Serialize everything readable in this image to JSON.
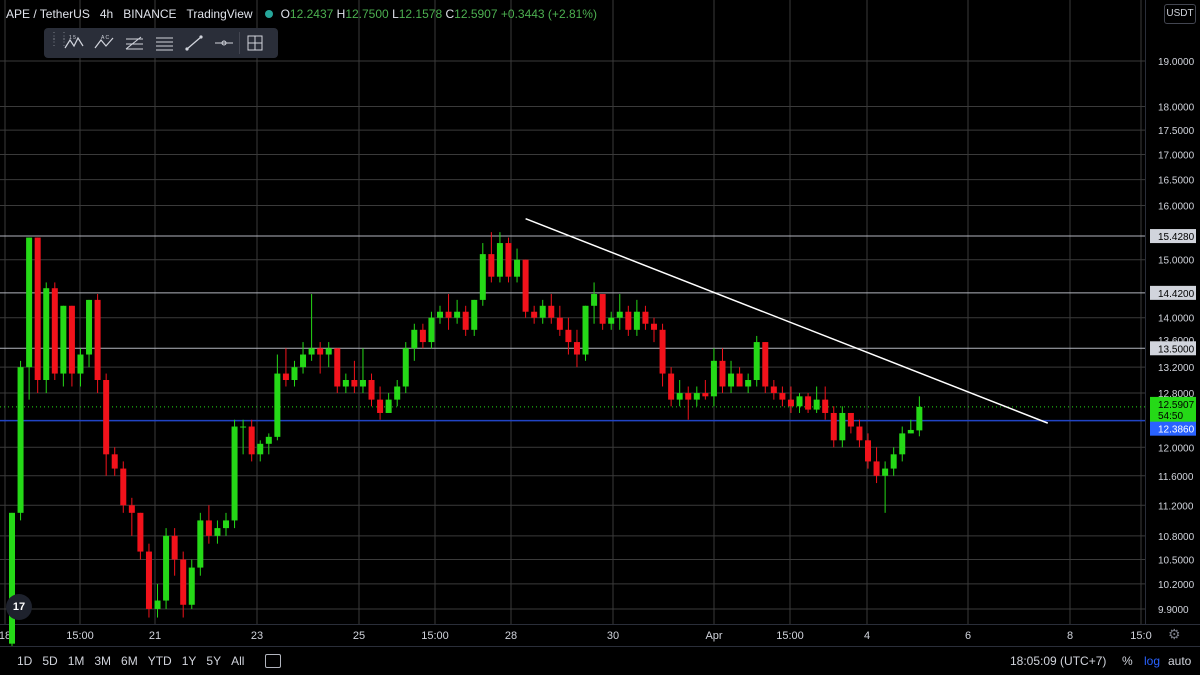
{
  "legend": {
    "symbol": "APE / TetherUS",
    "interval": "4h",
    "exchange": "BINANCE",
    "source": "TradingView",
    "o_label": "O",
    "o": "12.2437",
    "h_label": "H",
    "h": "12.7500",
    "l_label": "L",
    "l": "12.1578",
    "c_label": "C",
    "c": "12.5907",
    "change": "+0.3443 (+2.81%)"
  },
  "currency": "USDT",
  "toolbar": {
    "icons": [
      "grip-icon",
      "xabcd-pattern-icon",
      "abc-pattern-icon",
      "fib-retracement-icon",
      "fib-channel-icon",
      "trend-line-icon",
      "horizontal-ray-icon",
      "cross-frame-icon"
    ]
  },
  "colors": {
    "up": "#25d917",
    "down": "#f2121b",
    "grid": "#3a3a3a",
    "level": "#b2b5be",
    "trendline": "#ffffff",
    "blue_line": "#2144c4",
    "price_tag": "#25d917",
    "blue_tag": "#2962ff"
  },
  "chart_data": {
    "type": "candlestick",
    "y_ticks": [
      "19.0000",
      "18.0000",
      "17.5000",
      "17.0000",
      "16.5000",
      "16.0000",
      "15.0000",
      "14.0000",
      "13.2000",
      "12.8000",
      "12.0000",
      "11.6000",
      "11.2000",
      "10.8000",
      "10.5000",
      "10.2000",
      "9.9000"
    ],
    "x_ticks": [
      "18",
      "15:00",
      "21",
      "23",
      "25",
      "15:00",
      "28",
      "30",
      "Apr",
      "15:00",
      "4",
      "6",
      "8",
      "15:0"
    ],
    "levels": [
      {
        "price": "15.4280",
        "value": 15.428
      },
      {
        "price": "14.4200",
        "value": 14.42
      },
      {
        "price": "13.5000",
        "value": 13.5
      }
    ],
    "blue_line": {
      "price": "12.3860",
      "value": 12.386
    },
    "last_price": {
      "price": "12.5907",
      "countdown": "54:50",
      "value": 12.5907
    },
    "extra_level_label": "13.6000",
    "trendline": {
      "from": {
        "candle": 0,
        "offset": 60,
        "value": 15.75
      },
      "to": {
        "candle": 0,
        "offset": 121,
        "value": 12.35
      }
    },
    "candles": [
      [
        9.5,
        11.1,
        9.4,
        11.1
      ],
      [
        11.1,
        13.3,
        11.0,
        13.2
      ],
      [
        13.2,
        15.4,
        12.7,
        15.4
      ],
      [
        15.4,
        15.4,
        12.8,
        13.0
      ],
      [
        13.0,
        14.6,
        12.8,
        14.5
      ],
      [
        14.5,
        14.6,
        13.0,
        13.1
      ],
      [
        13.1,
        14.2,
        12.9,
        14.2
      ],
      [
        14.2,
        14.2,
        12.9,
        13.1
      ],
      [
        13.1,
        13.5,
        12.9,
        13.4
      ],
      [
        13.4,
        14.3,
        13.2,
        14.3
      ],
      [
        14.3,
        14.4,
        12.8,
        13.0
      ],
      [
        13.0,
        13.1,
        11.6,
        11.9
      ],
      [
        11.9,
        12.0,
        11.6,
        11.7
      ],
      [
        11.7,
        11.8,
        11.1,
        11.2
      ],
      [
        11.2,
        11.3,
        10.8,
        11.1
      ],
      [
        11.1,
        11.1,
        10.5,
        10.6
      ],
      [
        10.6,
        10.7,
        9.8,
        9.9
      ],
      [
        9.9,
        10.2,
        9.8,
        10.0
      ],
      [
        10.0,
        10.9,
        9.9,
        10.8
      ],
      [
        10.8,
        10.9,
        10.3,
        10.5
      ],
      [
        10.5,
        10.6,
        9.8,
        9.95
      ],
      [
        9.95,
        10.5,
        9.9,
        10.4
      ],
      [
        10.4,
        11.1,
        10.3,
        11.0
      ],
      [
        11.0,
        11.2,
        10.7,
        10.8
      ],
      [
        10.8,
        11.0,
        10.7,
        10.9
      ],
      [
        10.9,
        11.1,
        10.8,
        11.0
      ],
      [
        11.0,
        12.4,
        10.9,
        12.3
      ],
      [
        12.3,
        12.4,
        11.9,
        12.3
      ],
      [
        12.3,
        12.4,
        11.8,
        11.9
      ],
      [
        11.9,
        12.1,
        11.8,
        12.05
      ],
      [
        12.05,
        12.2,
        11.9,
        12.15
      ],
      [
        12.15,
        13.4,
        12.1,
        13.1
      ],
      [
        13.1,
        13.5,
        12.9,
        13.0
      ],
      [
        13.0,
        13.3,
        12.9,
        13.2
      ],
      [
        13.2,
        13.6,
        13.1,
        13.4
      ],
      [
        13.4,
        14.4,
        13.3,
        13.5
      ],
      [
        13.5,
        13.6,
        13.1,
        13.4
      ],
      [
        13.4,
        13.6,
        13.2,
        13.5
      ],
      [
        13.5,
        13.5,
        12.8,
        12.9
      ],
      [
        12.9,
        13.1,
        12.8,
        13.0
      ],
      [
        13.0,
        13.3,
        12.8,
        12.9
      ],
      [
        12.9,
        13.5,
        12.8,
        13.0
      ],
      [
        13.0,
        13.1,
        12.6,
        12.7
      ],
      [
        12.7,
        12.9,
        12.4,
        12.5
      ],
      [
        12.5,
        12.8,
        12.5,
        12.7
      ],
      [
        12.7,
        13.0,
        12.6,
        12.9
      ],
      [
        12.9,
        13.6,
        12.8,
        13.5
      ],
      [
        13.5,
        13.9,
        13.3,
        13.8
      ],
      [
        13.8,
        13.9,
        13.5,
        13.6
      ],
      [
        13.6,
        14.1,
        13.5,
        14.0
      ],
      [
        14.0,
        14.2,
        13.9,
        14.1
      ],
      [
        14.1,
        14.4,
        13.8,
        14.0
      ],
      [
        14.0,
        14.3,
        13.9,
        14.1
      ],
      [
        14.1,
        14.2,
        13.7,
        13.8
      ],
      [
        13.8,
        14.3,
        13.7,
        14.3
      ],
      [
        14.3,
        15.3,
        14.2,
        15.1
      ],
      [
        15.1,
        15.5,
        14.6,
        14.7
      ],
      [
        14.7,
        15.5,
        14.6,
        15.3
      ],
      [
        15.3,
        15.4,
        14.6,
        14.7
      ],
      [
        14.7,
        15.2,
        14.6,
        15.0
      ],
      [
        15.0,
        15.0,
        14.0,
        14.1
      ],
      [
        14.1,
        14.2,
        13.9,
        14.0
      ],
      [
        14.0,
        14.3,
        13.9,
        14.2
      ],
      [
        14.2,
        14.4,
        13.9,
        14.0
      ],
      [
        14.0,
        14.2,
        13.7,
        13.8
      ],
      [
        13.8,
        14.0,
        13.4,
        13.6
      ],
      [
        13.6,
        13.8,
        13.2,
        13.4
      ],
      [
        13.4,
        14.2,
        13.3,
        14.2
      ],
      [
        14.2,
        14.6,
        13.9,
        14.4
      ],
      [
        14.4,
        14.4,
        13.8,
        13.9
      ],
      [
        13.9,
        14.1,
        13.8,
        14.0
      ],
      [
        14.0,
        14.4,
        13.8,
        14.1
      ],
      [
        14.1,
        14.2,
        13.7,
        13.8
      ],
      [
        13.8,
        14.3,
        13.7,
        14.1
      ],
      [
        14.1,
        14.2,
        13.8,
        13.9
      ],
      [
        13.9,
        14.0,
        13.6,
        13.8
      ],
      [
        13.8,
        13.9,
        12.9,
        13.1
      ],
      [
        13.1,
        13.2,
        12.6,
        12.7
      ],
      [
        12.7,
        13.0,
        12.6,
        12.8
      ],
      [
        12.8,
        12.9,
        12.4,
        12.7
      ],
      [
        12.7,
        12.9,
        12.6,
        12.8
      ],
      [
        12.8,
        13.0,
        12.7,
        12.75
      ],
      [
        12.75,
        13.5,
        12.6,
        13.3
      ],
      [
        13.3,
        13.5,
        12.8,
        12.9
      ],
      [
        12.9,
        13.3,
        12.8,
        13.1
      ],
      [
        13.1,
        13.2,
        12.9,
        12.9
      ],
      [
        12.9,
        13.1,
        12.8,
        13.0
      ],
      [
        13.0,
        13.7,
        12.9,
        13.6
      ],
      [
        13.6,
        13.6,
        12.8,
        12.9
      ],
      [
        12.9,
        13.0,
        12.7,
        12.8
      ],
      [
        12.8,
        12.9,
        12.6,
        12.7
      ],
      [
        12.7,
        12.9,
        12.5,
        12.6
      ],
      [
        12.6,
        12.8,
        12.5,
        12.75
      ],
      [
        12.75,
        12.8,
        12.5,
        12.55
      ],
      [
        12.55,
        12.9,
        12.5,
        12.7
      ],
      [
        12.7,
        12.9,
        12.4,
        12.5
      ],
      [
        12.5,
        12.6,
        12.0,
        12.1
      ],
      [
        12.1,
        12.6,
        12.0,
        12.5
      ],
      [
        12.5,
        12.5,
        12.2,
        12.3
      ],
      [
        12.3,
        12.4,
        12.0,
        12.1
      ],
      [
        12.1,
        12.2,
        11.7,
        11.8
      ],
      [
        11.8,
        12.0,
        11.5,
        11.6
      ],
      [
        11.6,
        11.8,
        11.1,
        11.7
      ],
      [
        11.7,
        12.0,
        11.6,
        11.9
      ],
      [
        11.9,
        12.3,
        11.8,
        12.2
      ],
      [
        12.2,
        12.4,
        12.2,
        12.25
      ],
      [
        12.2437,
        12.75,
        12.1578,
        12.5907
      ]
    ]
  },
  "bottom": {
    "timeframes": [
      "1D",
      "5D",
      "1M",
      "3M",
      "6M",
      "YTD",
      "1Y",
      "5Y",
      "All"
    ],
    "clock": "18:05:09 (UTC+7)",
    "percent": "%",
    "log": "log",
    "auto": "auto"
  }
}
